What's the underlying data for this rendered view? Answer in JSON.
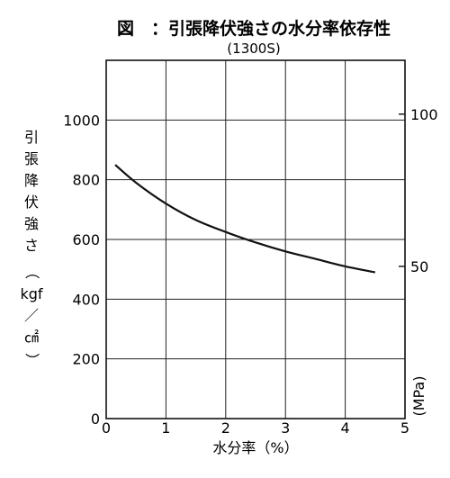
{
  "chart_data": {
    "type": "line",
    "title": "図　：引張降伏強さの水分率依存性",
    "subtitle": "(1300S)",
    "xlabel": "水分率（%）",
    "ylabel_chars": [
      "引",
      "張",
      "降",
      "伏",
      "強",
      "さ",
      "（",
      "kgf",
      "／",
      "㎠",
      "）"
    ],
    "y2label": "(MPa)",
    "xlim": [
      0,
      5
    ],
    "ylim": [
      0,
      1200
    ],
    "x_ticks": [
      "0",
      "1",
      "2",
      "3",
      "4",
      "5"
    ],
    "y_ticks": [
      "0",
      "200",
      "400",
      "600",
      "800",
      "1000"
    ],
    "y2_ticks": [
      {
        "value": 50,
        "label": "50"
      },
      {
        "value": 100,
        "label": "100"
      }
    ],
    "y2_to_y_factor": 10.197,
    "grid": true,
    "series": [
      {
        "x": [
          0.15,
          0.5,
          1.0,
          1.5,
          2.0,
          2.5,
          3.0,
          3.5,
          4.0,
          4.5
        ],
        "y": [
          850,
          790,
          720,
          665,
          625,
          590,
          560,
          535,
          510,
          490
        ]
      }
    ]
  }
}
